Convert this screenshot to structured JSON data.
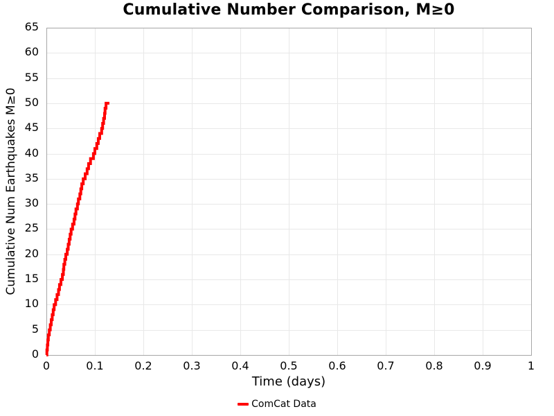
{
  "title": "Cumulative Number Comparison, M≥0",
  "axes": {
    "xlabel": "Time (days)",
    "ylabel": "Cumulative Num Earthquakes M≥0",
    "xlim": [
      0,
      1
    ],
    "ylim": [
      0,
      65
    ],
    "xticks": {
      "values": [
        0,
        0.1,
        0.2,
        0.3,
        0.4,
        0.5,
        0.6,
        0.7,
        0.8,
        0.9,
        1
      ],
      "labels": [
        "0",
        "0.1",
        "0.2",
        "0.3",
        "0.4",
        "0.5",
        "0.6",
        "0.7",
        "0.8",
        "0.9",
        "1"
      ]
    },
    "yticks": {
      "values": [
        0,
        5,
        10,
        15,
        20,
        25,
        30,
        35,
        40,
        45,
        50,
        55,
        60,
        65
      ],
      "labels": [
        "0",
        "5",
        "10",
        "15",
        "20",
        "25",
        "30",
        "35",
        "40",
        "45",
        "50",
        "55",
        "60",
        "65"
      ]
    },
    "grid": true
  },
  "legend": {
    "position": "bottom-center",
    "items": [
      {
        "label": "ComCat Data",
        "color": "#ff0000"
      }
    ]
  },
  "colors": {
    "line": "#ff0000",
    "grid": "#e8e8e8",
    "spine": "#a6a6a6",
    "text": "#000000",
    "background": "#ffffff"
  },
  "chart_data": {
    "type": "line",
    "step": true,
    "title": "Cumulative Number Comparison, M≥0",
    "xlabel": "Time (days)",
    "ylabel": "Cumulative Num Earthquakes M≥0",
    "xlim": [
      0,
      1
    ],
    "ylim": [
      0,
      65
    ],
    "series": [
      {
        "name": "ComCat Data",
        "color": "#ff0000",
        "start": [
          0,
          0
        ],
        "tail_x": 0.13,
        "x": [
          0.001,
          0.002,
          0.003,
          0.004,
          0.006,
          0.008,
          0.01,
          0.012,
          0.014,
          0.016,
          0.019,
          0.022,
          0.025,
          0.027,
          0.03,
          0.033,
          0.035,
          0.036,
          0.038,
          0.04,
          0.043,
          0.045,
          0.047,
          0.049,
          0.051,
          0.054,
          0.057,
          0.059,
          0.061,
          0.064,
          0.066,
          0.069,
          0.071,
          0.073,
          0.076,
          0.08,
          0.084,
          0.087,
          0.091,
          0.097,
          0.1,
          0.104,
          0.107,
          0.11,
          0.114,
          0.116,
          0.118,
          0.12,
          0.121,
          0.123
        ],
        "y": [
          1,
          2,
          3,
          4,
          5,
          6,
          7,
          8,
          9,
          10,
          11,
          12,
          13,
          14,
          15,
          16,
          17,
          18,
          19,
          20,
          21,
          22,
          23,
          24,
          25,
          26,
          27,
          28,
          29,
          30,
          31,
          32,
          33,
          34,
          35,
          36,
          37,
          38,
          39,
          40,
          41,
          42,
          43,
          44,
          45,
          46,
          47,
          48,
          49,
          50
        ]
      }
    ]
  }
}
